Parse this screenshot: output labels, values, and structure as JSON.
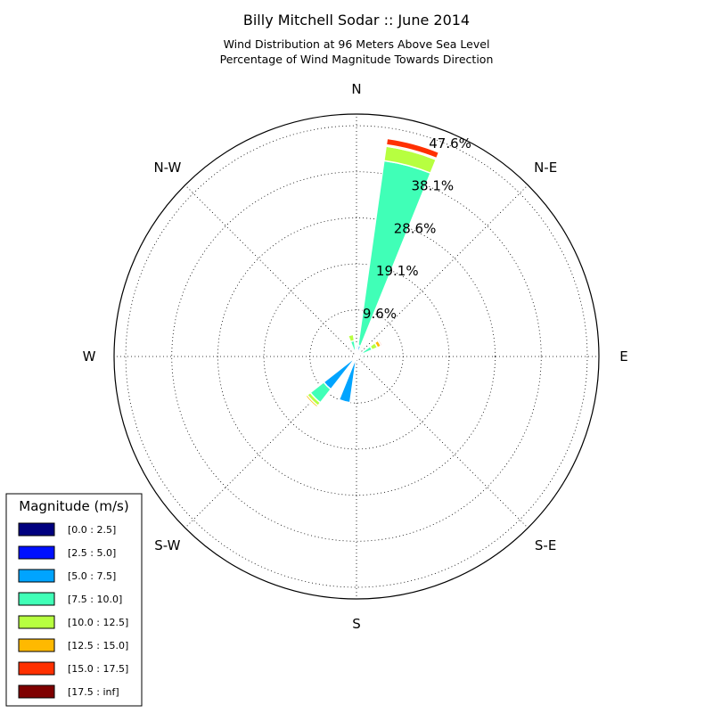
{
  "chart_data": {
    "type": "windrose",
    "title": "Billy Mitchell Sodar :: June 2014",
    "subtitle_lines": [
      "Wind Distribution at 96 Meters Above Sea Level",
      "Percentage of Wind Magnitude Towards Direction"
    ],
    "directions": [
      "N",
      "N-E",
      "E",
      "S-E",
      "S",
      "S-W",
      "W",
      "N-W"
    ],
    "rings": [
      9.6,
      19.1,
      28.6,
      38.1,
      47.6
    ],
    "ring_labels": [
      "9.6%",
      "19.1%",
      "28.6%",
      "38.1%",
      "47.6%"
    ],
    "rmax": 50,
    "legend": {
      "title": "Magnitude (m/s)",
      "placement": "bottom-left",
      "bins": [
        {
          "label": "[0.0 : 2.5]",
          "color": "#00007f"
        },
        {
          "label": "[2.5 : 5.0]",
          "color": "#0010ff"
        },
        {
          "label": "[5.0 : 7.5]",
          "color": "#00a4ff"
        },
        {
          "label": "[7.5 : 10.0]",
          "color": "#40ffb7"
        },
        {
          "label": "[10.0 : 12.5]",
          "color": "#b7ff40"
        },
        {
          "label": "[12.5 : 15.0]",
          "color": "#ffb900"
        },
        {
          "label": "[15.0 : 17.5]",
          "color": "#ff3000"
        },
        {
          "label": "[17.5 : inf]",
          "color": "#7f0000"
        }
      ]
    },
    "sectors": [
      {
        "center": 15,
        "width": 14,
        "stacks": [
          0.3,
          0.5,
          1.5,
          38.5,
          3.0,
          0.3,
          1.3,
          0.0
        ]
      },
      {
        "center": 60,
        "width": 14,
        "stacks": [
          0.2,
          0.4,
          0.9,
          2.0,
          1.2,
          0.8,
          0.3,
          0.0
        ]
      },
      {
        "center": 105,
        "width": 14,
        "stacks": [
          0.3,
          0.3,
          0.5,
          0.5,
          0.2,
          0.0,
          0.0,
          0.0
        ]
      },
      {
        "center": 195,
        "width": 14,
        "stacks": [
          0.3,
          0.8,
          8.5,
          0.0,
          0.0,
          0.0,
          0.0,
          0.0
        ]
      },
      {
        "center": 225,
        "width": 14,
        "stacks": [
          0.3,
          0.8,
          7.5,
          3.5,
          0.8,
          0.4,
          0.0,
          0.0
        ]
      },
      {
        "center": 345,
        "width": 14,
        "stacks": [
          0.3,
          0.4,
          0.6,
          2.0,
          1.3,
          0.0,
          0.0,
          0.0
        ]
      },
      {
        "center": 15,
        "width": 0,
        "stacks": [
          0,
          0,
          0,
          0,
          0,
          0,
          0,
          0
        ]
      },
      {
        "center": 5,
        "width": 10,
        "stacks": [
          0.3,
          0.5,
          1.2,
          0.4,
          0.0,
          0.0,
          0.0,
          0.0
        ]
      },
      {
        "center": 30,
        "width": 10,
        "stacks": [
          0.2,
          0.4,
          0.8,
          0.6,
          0.4,
          0.3,
          0.0,
          0.0
        ]
      }
    ]
  }
}
